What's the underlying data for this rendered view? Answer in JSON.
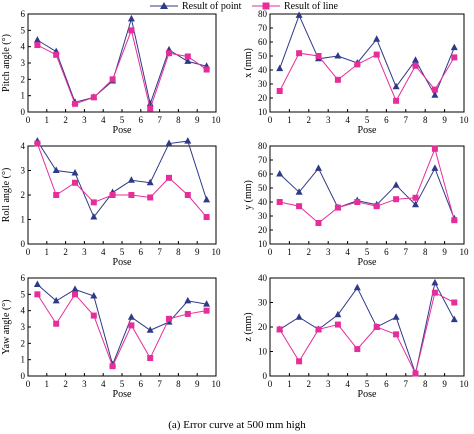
{
  "legend": {
    "items": [
      {
        "label": "Result of point",
        "color": "#2e3a87",
        "marker": "triangle"
      },
      {
        "label": "Result of line",
        "color": "#e62e9b",
        "marker": "square"
      }
    ]
  },
  "caption": "(a) Error curve at 500 mm high",
  "chart_data": [
    {
      "type": "line",
      "xlabel": "Pose",
      "ylabel": "Pitch angle (°)",
      "xlim": [
        0,
        10
      ],
      "ylim": [
        0,
        6
      ],
      "xticks": [
        0,
        1,
        2,
        3,
        4,
        5,
        6,
        7,
        8,
        9,
        10
      ],
      "yticks": [
        0,
        1,
        2,
        3,
        4,
        5,
        6
      ],
      "x": [
        0.5,
        1.5,
        2.5,
        3.5,
        4.5,
        5.5,
        6.5,
        7.5,
        8.5,
        9.5
      ],
      "series": [
        {
          "name": "Result of point",
          "values": [
            4.4,
            3.7,
            0.6,
            0.9,
            1.9,
            5.7,
            0.5,
            3.8,
            3.1,
            2.8
          ]
        },
        {
          "name": "Result of line",
          "values": [
            4.1,
            3.5,
            0.5,
            0.9,
            2.0,
            5.0,
            0.2,
            3.6,
            3.4,
            2.6
          ]
        }
      ]
    },
    {
      "type": "line",
      "xlabel": "Pose",
      "ylabel": "x (mm)",
      "xlim": [
        0,
        10
      ],
      "ylim": [
        10,
        80
      ],
      "xticks": [
        0,
        1,
        2,
        3,
        4,
        5,
        6,
        7,
        8,
        9,
        10
      ],
      "yticks": [
        10,
        20,
        30,
        40,
        50,
        60,
        70,
        80
      ],
      "x": [
        0.5,
        1.5,
        2.5,
        3.5,
        4.5,
        5.5,
        6.5,
        7.5,
        8.5,
        9.5
      ],
      "series": [
        {
          "name": "Result of point",
          "values": [
            41,
            79,
            48,
            50,
            45,
            62,
            28,
            47,
            22,
            56
          ]
        },
        {
          "name": "Result of line",
          "values": [
            25,
            52,
            50,
            33,
            44,
            51,
            18,
            43,
            26,
            49
          ]
        }
      ]
    },
    {
      "type": "line",
      "xlabel": "Pose",
      "ylabel": "Roll angle (°)",
      "xlim": [
        0,
        10
      ],
      "ylim": [
        0,
        4
      ],
      "xticks": [
        0,
        1,
        2,
        3,
        4,
        5,
        6,
        7,
        8,
        9,
        10
      ],
      "yticks": [
        0,
        1,
        2,
        3,
        4
      ],
      "x": [
        0.5,
        1.5,
        2.5,
        3.5,
        4.5,
        5.5,
        6.5,
        7.5,
        8.5,
        9.5
      ],
      "series": [
        {
          "name": "Result of point",
          "values": [
            4.2,
            3.0,
            2.9,
            1.1,
            2.1,
            2.6,
            2.5,
            4.1,
            4.2,
            1.8
          ]
        },
        {
          "name": "Result of line",
          "values": [
            4.1,
            2.0,
            2.5,
            1.7,
            2.0,
            2.0,
            1.9,
            2.7,
            2.0,
            1.1
          ]
        }
      ]
    },
    {
      "type": "line",
      "xlabel": "Pose",
      "ylabel": "y (mm)",
      "xlim": [
        0,
        10
      ],
      "ylim": [
        10,
        80
      ],
      "xticks": [
        0,
        1,
        2,
        3,
        4,
        5,
        6,
        7,
        8,
        9,
        10
      ],
      "yticks": [
        10,
        20,
        30,
        40,
        50,
        60,
        70,
        80
      ],
      "x": [
        0.5,
        1.5,
        2.5,
        3.5,
        4.5,
        5.5,
        6.5,
        7.5,
        8.5,
        9.5
      ],
      "series": [
        {
          "name": "Result of point",
          "values": [
            60,
            47,
            64,
            36,
            41,
            38,
            52,
            38,
            64,
            28
          ]
        },
        {
          "name": "Result of line",
          "values": [
            40,
            37,
            25,
            36,
            40,
            37,
            42,
            43,
            78,
            27
          ]
        }
      ]
    },
    {
      "type": "line",
      "xlabel": "Pose",
      "ylabel": "Yaw angle (°)",
      "xlim": [
        0,
        10
      ],
      "ylim": [
        0,
        6
      ],
      "xticks": [
        0,
        1,
        2,
        3,
        4,
        5,
        6,
        7,
        8,
        9,
        10
      ],
      "yticks": [
        0,
        1,
        2,
        3,
        4,
        5,
        6
      ],
      "x": [
        0.5,
        1.5,
        2.5,
        3.5,
        4.5,
        5.5,
        6.5,
        7.5,
        8.5,
        9.5
      ],
      "series": [
        {
          "name": "Result of point",
          "values": [
            5.6,
            4.6,
            5.3,
            4.9,
            0.7,
            3.6,
            2.8,
            3.3,
            4.6,
            4.4
          ]
        },
        {
          "name": "Result of line",
          "values": [
            5.0,
            3.2,
            5.0,
            3.7,
            0.6,
            3.1,
            1.1,
            3.5,
            3.8,
            4.0
          ]
        }
      ]
    },
    {
      "type": "line",
      "xlabel": "Pose",
      "ylabel": "z (mm)",
      "xlim": [
        0,
        10
      ],
      "ylim": [
        0,
        40
      ],
      "xticks": [
        0,
        1,
        2,
        3,
        4,
        5,
        6,
        7,
        8,
        9,
        10
      ],
      "yticks": [
        0,
        10,
        20,
        30,
        40
      ],
      "x": [
        0.5,
        1.5,
        2.5,
        3.5,
        4.5,
        5.5,
        6.5,
        7.5,
        8.5,
        9.5
      ],
      "series": [
        {
          "name": "Result of point",
          "values": [
            19,
            24,
            19,
            25,
            36,
            20,
            24,
            1,
            38,
            23
          ]
        },
        {
          "name": "Result of line",
          "values": [
            19,
            6,
            19,
            21,
            11,
            20,
            17,
            1,
            34,
            30
          ]
        }
      ]
    }
  ]
}
